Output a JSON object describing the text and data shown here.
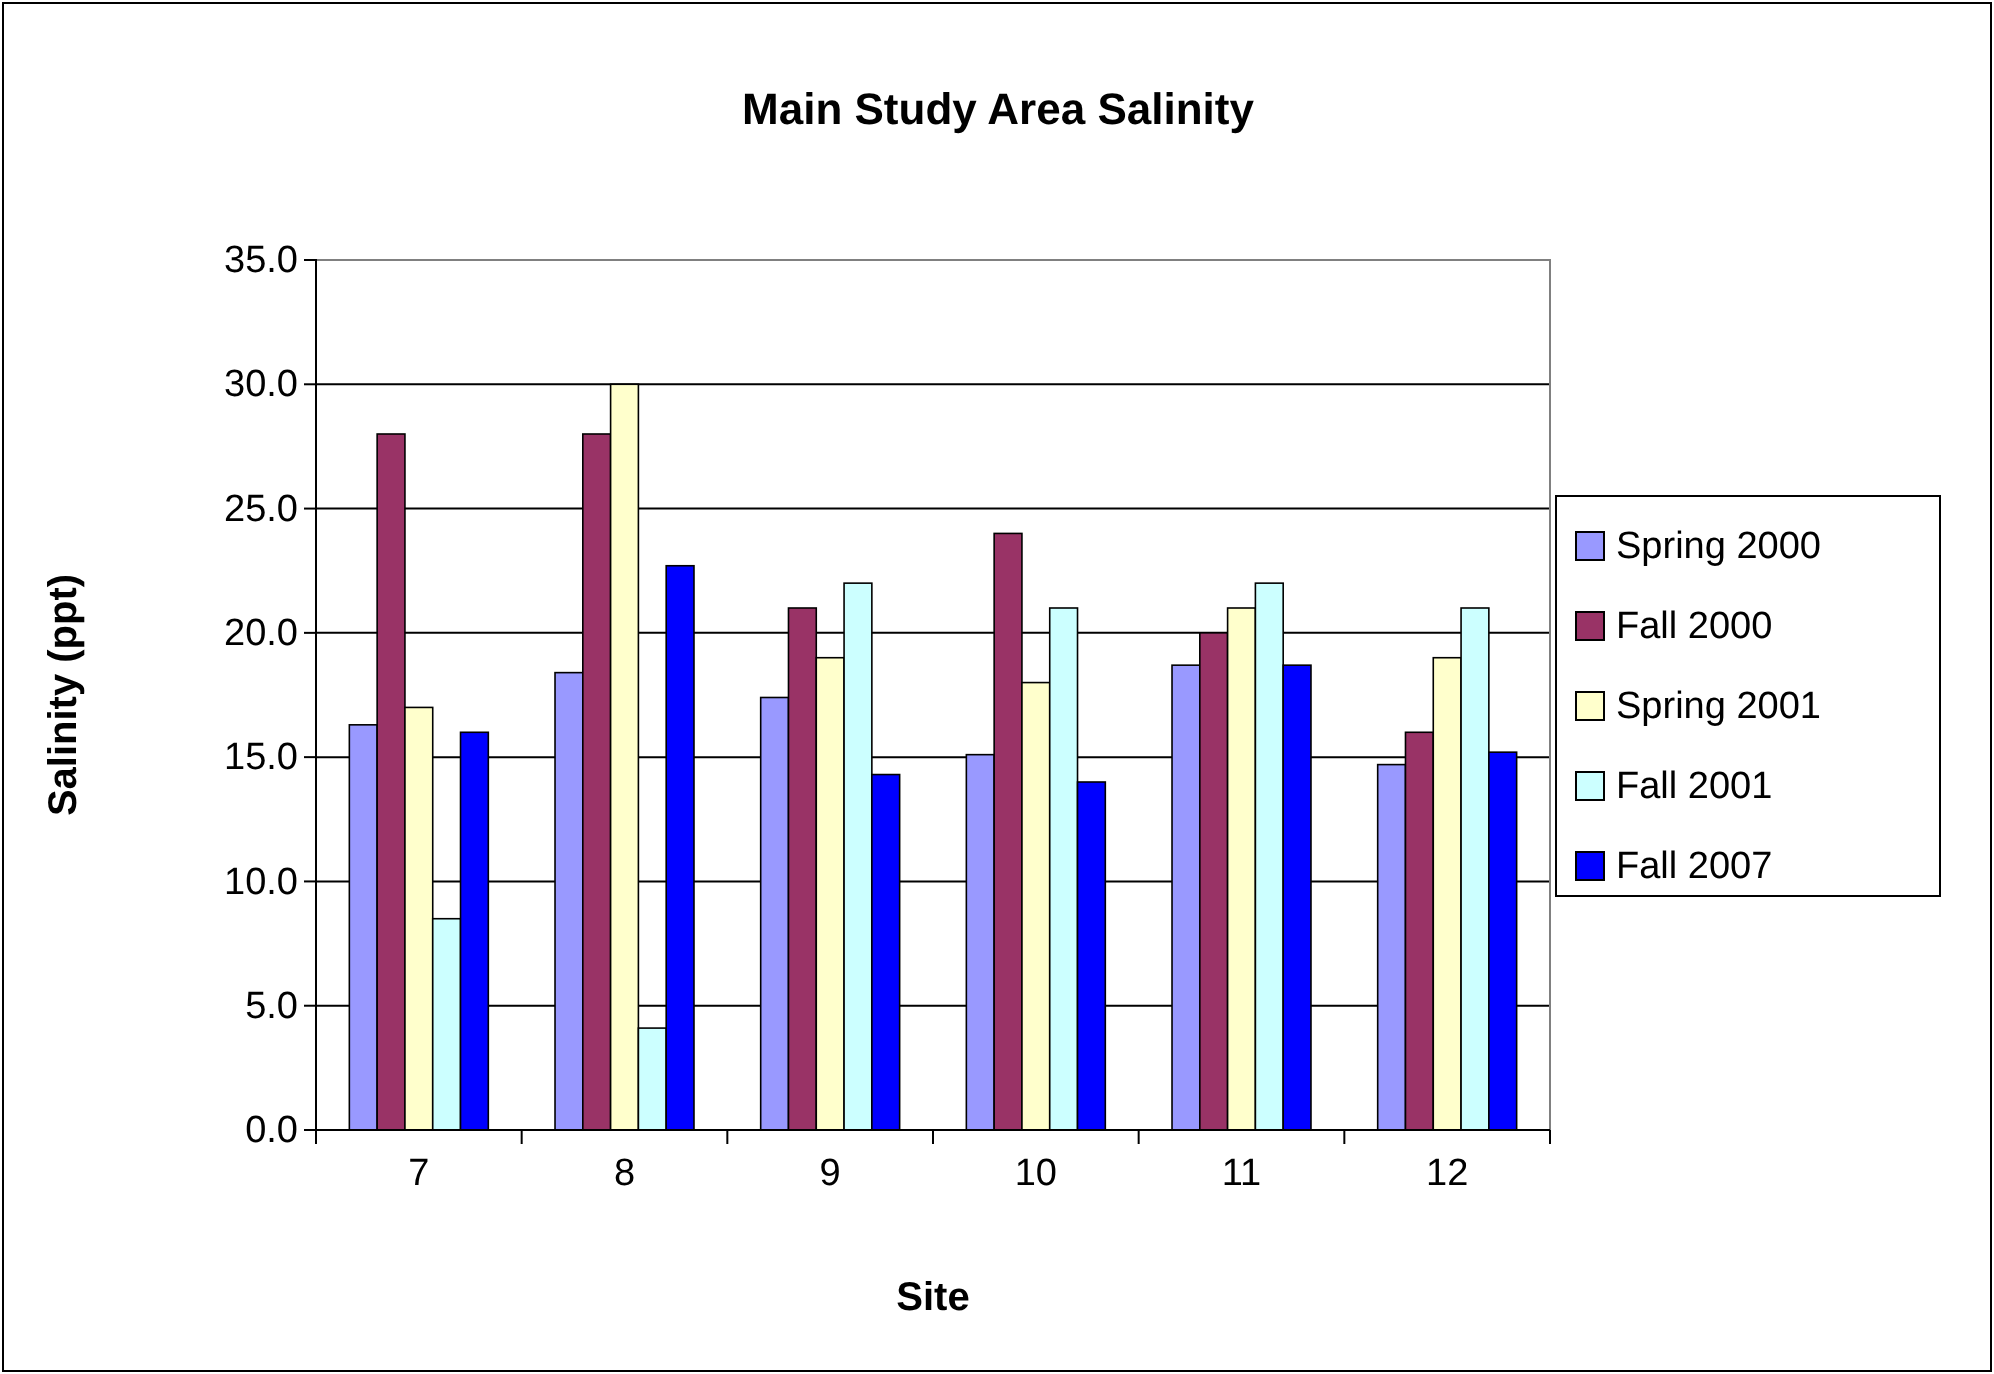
{
  "chart_data": {
    "type": "bar",
    "title": "Main Study Area Salinity",
    "xlabel": "Site",
    "ylabel": "Salinity (ppt)",
    "categories": [
      "7",
      "8",
      "9",
      "10",
      "11",
      "12"
    ],
    "series": [
      {
        "name": "Spring 2000",
        "color": "#9999ff",
        "values": [
          16.3,
          18.4,
          17.4,
          15.1,
          18.7,
          14.7
        ]
      },
      {
        "name": "Fall 2000",
        "color": "#993366",
        "values": [
          28,
          28,
          21,
          24,
          20,
          16
        ]
      },
      {
        "name": "Spring 2001",
        "color": "#ffffcc",
        "values": [
          17,
          30,
          19,
          18,
          21,
          19
        ]
      },
      {
        "name": "Fall 2001",
        "color": "#ccffff",
        "values": [
          8.5,
          4.1,
          22,
          21,
          22,
          21
        ]
      },
      {
        "name": "Fall 2007",
        "color": "#0000ff",
        "values": [
          16,
          22.7,
          14.3,
          14,
          18.7,
          15.2
        ]
      }
    ],
    "ylim": [
      0,
      35
    ],
    "yticks": [
      {
        "value": 0,
        "label": "0.0"
      },
      {
        "value": 5,
        "label": "5.0"
      },
      {
        "value": 10,
        "label": "10.0"
      },
      {
        "value": 15,
        "label": "15.0"
      },
      {
        "value": 20,
        "label": "20.0"
      },
      {
        "value": 25,
        "label": "25.0"
      },
      {
        "value": 30,
        "label": "30.0"
      },
      {
        "value": 35,
        "label": "35.0"
      }
    ],
    "grid": "y",
    "legend": "right"
  }
}
